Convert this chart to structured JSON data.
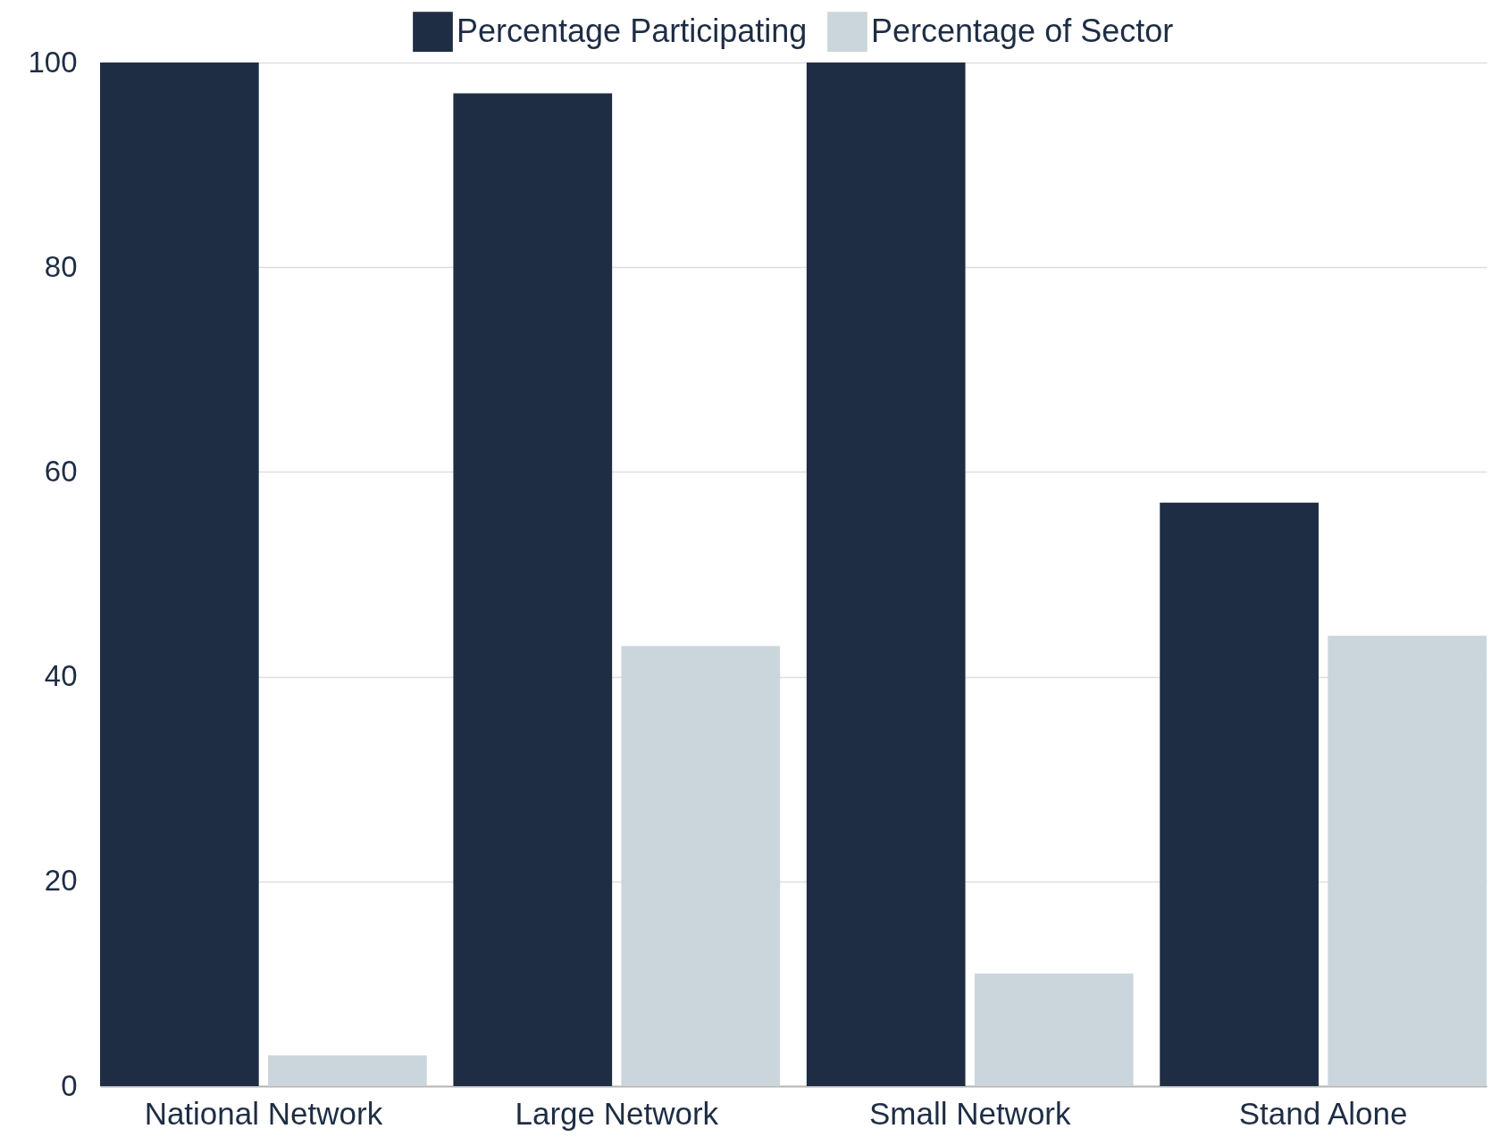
{
  "chart_data": {
    "type": "bar",
    "categories": [
      "National Network",
      "Large Network",
      "Small Network",
      "Stand Alone"
    ],
    "series": [
      {
        "name": "Percentage Participating",
        "color": "#1e2d44",
        "values": [
          100,
          97,
          100,
          57
        ]
      },
      {
        "name": "Percentage of Sector",
        "color": "#cbd6dc",
        "values": [
          3,
          43,
          11,
          44
        ]
      }
    ],
    "ylim": [
      0,
      100
    ],
    "yticks": [
      0,
      20,
      40,
      60,
      80,
      100
    ],
    "grid": "y",
    "legend": "top"
  }
}
